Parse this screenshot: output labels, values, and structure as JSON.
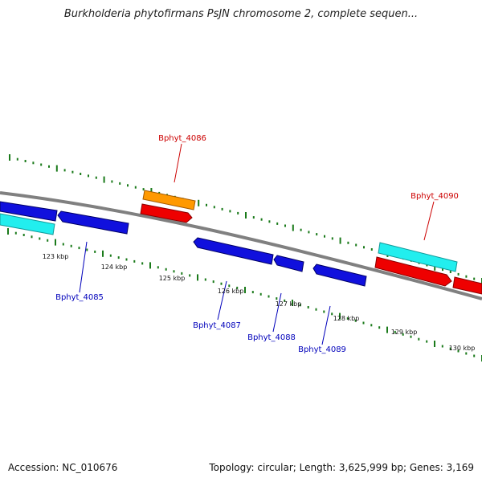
{
  "title": "Burkholderia phytofirmans PsJN chromosome 2, complete sequen...",
  "footer": {
    "accession": "Accession: NC_010676",
    "summary": "Topology: circular; Length: 3,625,999 bp; Genes: 3,169"
  },
  "colors": {
    "backbone": "#808080",
    "tick": "#1a7a1a",
    "forward_gene_label": "#cc0000",
    "reverse_gene_label": "#0000bb",
    "blue_gene": "#1010dd",
    "red_gene": "#ee0000",
    "orange_gene": "#ff9900",
    "cyan_gene": "#22eeee"
  },
  "scale_labels": [
    "123 kbp",
    "124 kbp",
    "125 kbp",
    "126 kbp",
    "127 kbp",
    "128 kbp",
    "129 kbp",
    "130 kbp"
  ],
  "gene_labels": [
    {
      "text": "Bphyt_4086",
      "color": "forward_gene_label"
    },
    {
      "text": "Bphyt_4090",
      "color": "forward_gene_label"
    },
    {
      "text": "Bphyt_4085",
      "color": "reverse_gene_label"
    },
    {
      "text": "Bphyt_4087",
      "color": "reverse_gene_label"
    },
    {
      "text": "Bphyt_4088",
      "color": "reverse_gene_label"
    },
    {
      "text": "Bphyt_4089",
      "color": "reverse_gene_label"
    }
  ]
}
